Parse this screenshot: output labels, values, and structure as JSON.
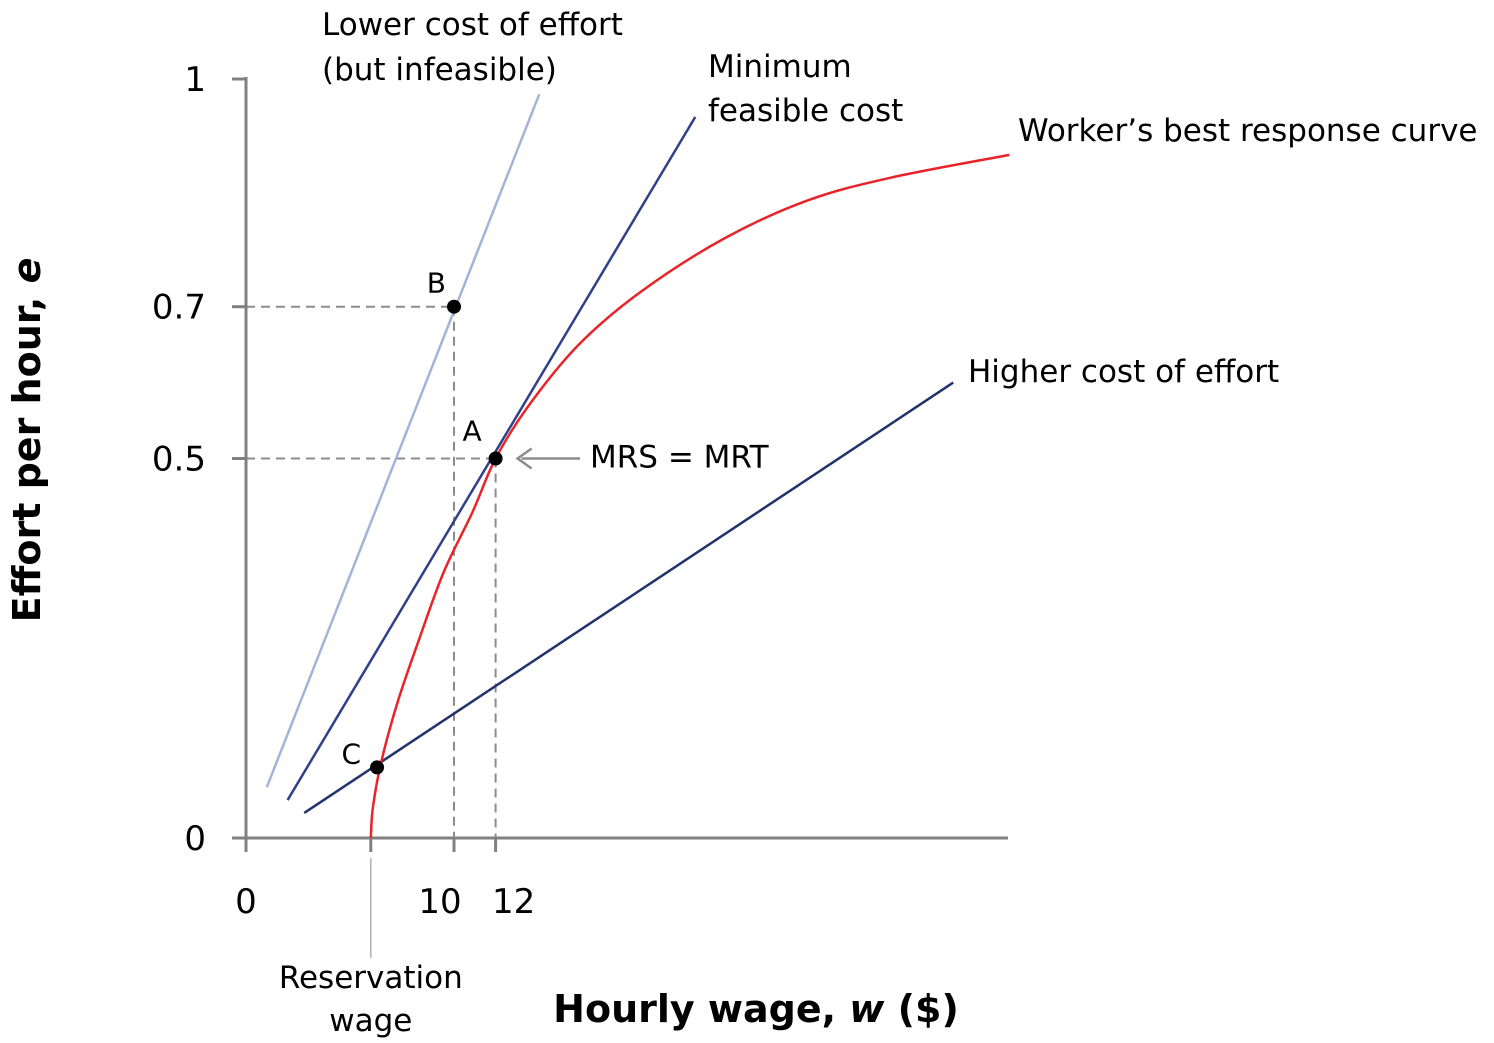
{
  "chart_data": {
    "type": "line",
    "xlabel": {
      "main": "Hourly wage, ",
      "var": "w",
      "unit": " ($)"
    },
    "ylabel": {
      "main": "Effort per hour, ",
      "var": "e"
    },
    "xlim": [
      0,
      37
    ],
    "ylim": [
      0,
      1
    ],
    "x_ticks": [
      {
        "value": 0,
        "label": "0"
      },
      {
        "value": 10,
        "label": "10"
      },
      {
        "value": 12,
        "label": "12"
      }
    ],
    "reservation_wage": {
      "value": 6,
      "label_line1": "Reservation",
      "label_line2": "wage"
    },
    "y_ticks": [
      {
        "value": 0,
        "label": "0"
      },
      {
        "value": 0.5,
        "label": "0.5"
      },
      {
        "value": 0.7,
        "label": "0.7"
      },
      {
        "value": 1,
        "label": "1"
      }
    ],
    "colors": {
      "best_response": "#e8242b",
      "min_feasible": "#2e4189",
      "higher_cost": "#22336b",
      "lower_cost": "#a3b3d9",
      "axis": "#808080",
      "guide": "#8c8c8c",
      "annotation_arrow": "#8c8c8c"
    },
    "series": [
      {
        "name": "Worker’s best response curve",
        "kind": "curve",
        "points": [
          [
            6,
            0.0
          ],
          [
            6.1,
            0.04
          ],
          [
            6.5,
            0.1
          ],
          [
            7.3,
            0.18
          ],
          [
            8.3,
            0.26
          ],
          [
            9.5,
            0.35
          ],
          [
            10.9,
            0.43
          ],
          [
            12,
            0.5
          ],
          [
            13.6,
            0.57
          ],
          [
            16,
            0.65
          ],
          [
            19,
            0.72
          ],
          [
            23,
            0.79
          ],
          [
            27,
            0.84
          ],
          [
            31,
            0.87
          ],
          [
            36.7,
            0.9
          ]
        ]
      },
      {
        "label_line1": "Minimum",
        "label_line2": "feasible cost",
        "kind": "line",
        "points": [
          [
            2,
            0.05
          ],
          [
            21.6,
            0.95
          ]
        ]
      },
      {
        "name": "Higher cost of effort",
        "kind": "line",
        "points": [
          [
            2.8,
            0.033
          ],
          [
            34,
            0.6
          ]
        ]
      },
      {
        "label_line1": "Lower cost of effort",
        "label_line2": "(but infeasible)",
        "kind": "line",
        "points": [
          [
            1,
            0.067
          ],
          [
            14.1,
            0.98
          ]
        ]
      }
    ],
    "points": [
      {
        "name": "A",
        "x": 12,
        "y": 0.5
      },
      {
        "name": "B",
        "x": 10,
        "y": 0.7
      },
      {
        "name": "C",
        "x": 6.3,
        "y": 0.093
      }
    ],
    "annotations": [
      {
        "text": "MRS = MRT",
        "target": "A"
      }
    ]
  }
}
